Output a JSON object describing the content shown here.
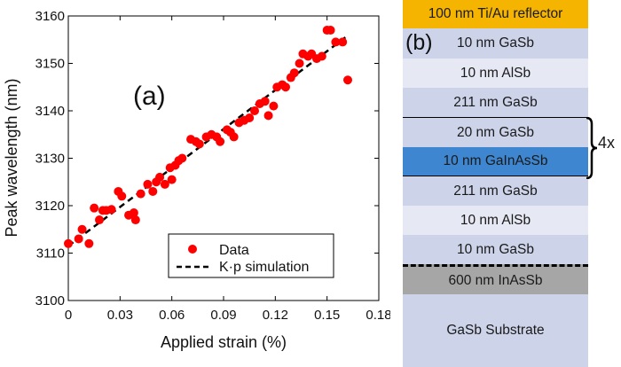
{
  "chart_data": {
    "type": "scatter",
    "panel_label": "(a)",
    "xlabel": "Applied strain (%)",
    "ylabel": "Peak wavelength (nm)",
    "xlim": [
      0,
      0.18
    ],
    "ylim": [
      3100,
      3160
    ],
    "xticks": [
      0,
      0.03,
      0.06,
      0.09,
      0.12,
      0.15,
      0.18
    ],
    "xtick_labels": [
      "0",
      "0.03",
      "0.06",
      "0.09",
      "0.12",
      "0.15",
      "0.18"
    ],
    "yticks": [
      3100,
      3110,
      3120,
      3130,
      3140,
      3150,
      3160
    ],
    "ytick_labels": [
      "3100",
      "3110",
      "3120",
      "3130",
      "3140",
      "3150",
      "3160"
    ],
    "grid": false,
    "legend_position": "bottom-right",
    "series": [
      {
        "name": "Data",
        "kind": "scatter",
        "color": "#ff0000",
        "points": [
          [
            0.0,
            3112
          ],
          [
            0.006,
            3113
          ],
          [
            0.008,
            3115
          ],
          [
            0.012,
            3112
          ],
          [
            0.015,
            3119.5
          ],
          [
            0.018,
            3117
          ],
          [
            0.02,
            3119
          ],
          [
            0.022,
            3119
          ],
          [
            0.025,
            3119.2
          ],
          [
            0.029,
            3123
          ],
          [
            0.031,
            3122
          ],
          [
            0.035,
            3118
          ],
          [
            0.038,
            3118.5
          ],
          [
            0.039,
            3117
          ],
          [
            0.042,
            3122.5
          ],
          [
            0.046,
            3124.5
          ],
          [
            0.049,
            3123
          ],
          [
            0.051,
            3125
          ],
          [
            0.053,
            3126
          ],
          [
            0.056,
            3124.5
          ],
          [
            0.059,
            3128
          ],
          [
            0.06,
            3125.5
          ],
          [
            0.062,
            3128.5
          ],
          [
            0.064,
            3129.5
          ],
          [
            0.066,
            3130
          ],
          [
            0.071,
            3134
          ],
          [
            0.074,
            3133.5
          ],
          [
            0.076,
            3133
          ],
          [
            0.08,
            3134.5
          ],
          [
            0.083,
            3135
          ],
          [
            0.086,
            3134.5
          ],
          [
            0.088,
            3133.5
          ],
          [
            0.092,
            3136
          ],
          [
            0.094,
            3135.5
          ],
          [
            0.096,
            3134.5
          ],
          [
            0.099,
            3137.5
          ],
          [
            0.102,
            3138
          ],
          [
            0.105,
            3138.5
          ],
          [
            0.108,
            3140
          ],
          [
            0.111,
            3141.5
          ],
          [
            0.114,
            3142
          ],
          [
            0.116,
            3139
          ],
          [
            0.119,
            3141
          ],
          [
            0.121,
            3145
          ],
          [
            0.124,
            3145.5
          ],
          [
            0.126,
            3145
          ],
          [
            0.129,
            3147
          ],
          [
            0.131,
            3148
          ],
          [
            0.134,
            3150
          ],
          [
            0.136,
            3152
          ],
          [
            0.139,
            3151.5
          ],
          [
            0.141,
            3152
          ],
          [
            0.144,
            3151
          ],
          [
            0.147,
            3151.5
          ],
          [
            0.15,
            3157
          ],
          [
            0.152,
            3157
          ],
          [
            0.155,
            3154.5
          ],
          [
            0.159,
            3154.5
          ],
          [
            0.162,
            3146.5
          ]
        ]
      },
      {
        "name": "K·p simulation",
        "kind": "line",
        "color": "#000000",
        "dash": "dashed",
        "points": [
          [
            0.0,
            3111.5
          ],
          [
            0.1625,
            3156
          ]
        ]
      }
    ]
  },
  "layer_stack": {
    "panel_label": "(b)",
    "repeat_label": "4x",
    "layers": [
      {
        "label": "100 nm Ti/Au reflector",
        "color": "#f5b400"
      },
      {
        "label": "10 nm GaSb",
        "color": "#cdd4ea"
      },
      {
        "label": "10 nm AlSb",
        "color": "#e6e8f4"
      },
      {
        "label": "211 nm GaSb",
        "color": "#cdd4ea"
      },
      {
        "label": "20 nm GaSb",
        "color": "#cdd4ea"
      },
      {
        "label": "10 nm GaInAsSb",
        "color": "#3e86cf"
      },
      {
        "label": "211 nm GaSb",
        "color": "#cdd4ea"
      },
      {
        "label": "10 nm AlSb",
        "color": "#e6e8f4"
      },
      {
        "label": "10 nm GaSb",
        "color": "#cdd4ea"
      },
      {
        "label": "600 nm InAsSb",
        "color": "#a6a6a6"
      },
      {
        "label": "GaSb Substrate",
        "color": "#cdd4ea"
      }
    ]
  }
}
